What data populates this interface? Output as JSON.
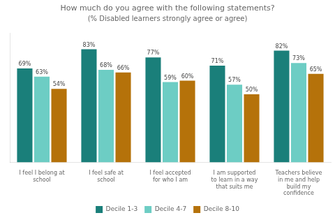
{
  "chart_data": {
    "type": "bar",
    "title": "How much do you agree with the following statements?",
    "subtitle": "(% Disabled learners strongly agree or agree)",
    "categories": [
      "I feel I belong at\nschool",
      "I feel safe at\nschool",
      "I feel accepted\nfor who I am",
      "I am supported\nto learn in a way\nthat suits me",
      "Teachers believe\nin me and help\nbuild my\nconfidence"
    ],
    "series": [
      {
        "name": "Decile 1-3",
        "color": "#1a7f7a",
        "values": [
          69,
          83,
          77,
          71,
          82
        ],
        "value_labels": [
          "69%",
          "83%",
          "77%",
          "71%",
          "82%"
        ]
      },
      {
        "name": "Decile 4-7",
        "color": "#6dcdc4",
        "values": [
          63,
          68,
          59,
          57,
          73
        ],
        "value_labels": [
          "63%",
          "68%",
          "59%",
          "57%",
          "73%"
        ]
      },
      {
        "name": "Decile 8-10",
        "color": "#b5720a",
        "values": [
          54,
          66,
          60,
          50,
          65
        ],
        "value_labels": [
          "54%",
          "66%",
          "60%",
          "50%",
          "65%"
        ]
      }
    ],
    "ylim": [
      0,
      95
    ],
    "grid": false,
    "legend": "bottom",
    "data_labels": true,
    "tick_labels": "x"
  }
}
